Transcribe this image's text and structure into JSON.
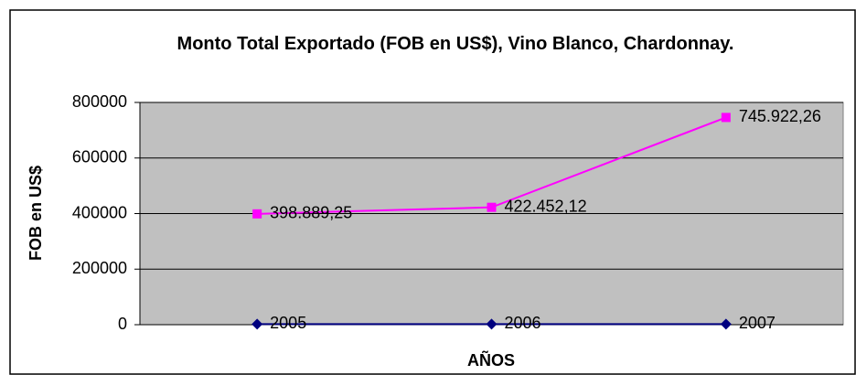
{
  "chart_data": {
    "type": "line",
    "title": "Monto Total Exportado (FOB en US$), Vino Blanco, Chardonnay.",
    "ylabel": "FOB en US$",
    "xlabel": "AÑOS",
    "categories": [
      null,
      null,
      null
    ],
    "series": [
      {
        "color": "#000080",
        "marker": "diamond",
        "values": [
          2005,
          2006,
          2007
        ]
      },
      {
        "color": "#ff00ff",
        "marker": "square",
        "values": [
          398889.25,
          422452.12,
          745922.26
        ],
        "value_labels": [
          "398.889,25",
          "422.452,12",
          "745.922,26"
        ]
      }
    ],
    "ylim": [
      0,
      800000
    ],
    "yticks": [
      0,
      200000,
      400000,
      600000,
      800000
    ],
    "grid": true
  }
}
